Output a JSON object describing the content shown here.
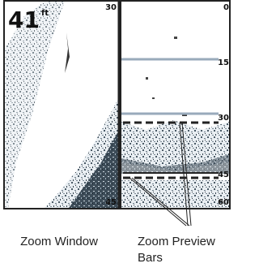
{
  "display": {
    "depth": "41",
    "depth_unit": "ft",
    "zoom_window_scale": [
      "30",
      "45"
    ],
    "full_scale": [
      "0",
      "15",
      "30",
      "45",
      "60"
    ]
  },
  "captions": {
    "zoom_window": "Zoom Window",
    "zoom_preview_bars": "Zoom Preview Bars"
  }
}
